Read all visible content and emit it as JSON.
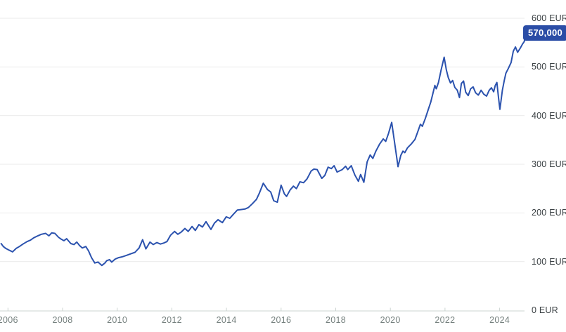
{
  "chart_data": {
    "type": "line",
    "title": "",
    "unit": "EUR",
    "current_value_label": "570,000",
    "line_color": "#2b52ae",
    "badge_color": "#2b4da6",
    "grid_color": "#ebebeb",
    "axis_color": "#ccd4d1",
    "grid": "horizontal-only",
    "legend": "none",
    "x_range": [
      2005.7,
      2025.2
    ],
    "ylim": [
      0,
      620
    ],
    "x_ticks": [
      "2006",
      "2008",
      "2010",
      "2012",
      "2014",
      "2016",
      "2018",
      "2020",
      "2022",
      "2024"
    ],
    "y_ticks": [
      {
        "value": 600,
        "label": "600 EUR"
      },
      {
        "value": 500,
        "label": "500 EUR"
      },
      {
        "value": 400,
        "label": "400 EUR"
      },
      {
        "value": 300,
        "label": "300 EUR"
      },
      {
        "value": 200,
        "label": "200 EUR"
      },
      {
        "value": 100,
        "label": "100 EUR"
      },
      {
        "value": 0,
        "label": "0 EUR"
      }
    ],
    "series": [
      {
        "points": [
          [
            2005.75,
            137
          ],
          [
            2005.83,
            131
          ],
          [
            2005.92,
            127
          ],
          [
            2006.02,
            124
          ],
          [
            2006.17,
            120
          ],
          [
            2006.3,
            127
          ],
          [
            2006.42,
            131
          ],
          [
            2006.55,
            136
          ],
          [
            2006.7,
            141
          ],
          [
            2006.82,
            144
          ],
          [
            2006.95,
            149
          ],
          [
            2007.1,
            153
          ],
          [
            2007.22,
            156
          ],
          [
            2007.38,
            158
          ],
          [
            2007.5,
            153
          ],
          [
            2007.6,
            159
          ],
          [
            2007.72,
            158
          ],
          [
            2007.85,
            150
          ],
          [
            2007.95,
            146
          ],
          [
            2008.05,
            143
          ],
          [
            2008.15,
            147
          ],
          [
            2008.3,
            137
          ],
          [
            2008.42,
            135
          ],
          [
            2008.52,
            140
          ],
          [
            2008.62,
            133
          ],
          [
            2008.72,
            128
          ],
          [
            2008.85,
            131
          ],
          [
            2008.95,
            122
          ],
          [
            2009.06,
            108
          ],
          [
            2009.18,
            97
          ],
          [
            2009.3,
            99
          ],
          [
            2009.44,
            92
          ],
          [
            2009.55,
            97
          ],
          [
            2009.62,
            102
          ],
          [
            2009.72,
            104
          ],
          [
            2009.8,
            99
          ],
          [
            2009.92,
            105
          ],
          [
            2010.05,
            108
          ],
          [
            2010.2,
            110
          ],
          [
            2010.35,
            113
          ],
          [
            2010.5,
            116
          ],
          [
            2010.65,
            119
          ],
          [
            2010.8,
            128
          ],
          [
            2010.93,
            145
          ],
          [
            2011.05,
            126
          ],
          [
            2011.2,
            140
          ],
          [
            2011.32,
            135
          ],
          [
            2011.45,
            139
          ],
          [
            2011.58,
            136
          ],
          [
            2011.7,
            138
          ],
          [
            2011.82,
            141
          ],
          [
            2011.95,
            154
          ],
          [
            2012.1,
            162
          ],
          [
            2012.22,
            156
          ],
          [
            2012.35,
            161
          ],
          [
            2012.48,
            168
          ],
          [
            2012.6,
            162
          ],
          [
            2012.74,
            172
          ],
          [
            2012.86,
            164
          ],
          [
            2012.99,
            176
          ],
          [
            2013.12,
            171
          ],
          [
            2013.25,
            182
          ],
          [
            2013.43,
            166
          ],
          [
            2013.56,
            179
          ],
          [
            2013.69,
            186
          ],
          [
            2013.85,
            180
          ],
          [
            2013.99,
            192
          ],
          [
            2014.12,
            189
          ],
          [
            2014.25,
            197
          ],
          [
            2014.4,
            206
          ],
          [
            2014.55,
            207
          ],
          [
            2014.68,
            208
          ],
          [
            2014.8,
            211
          ],
          [
            2014.95,
            219
          ],
          [
            2015.1,
            228
          ],
          [
            2015.2,
            240
          ],
          [
            2015.35,
            261
          ],
          [
            2015.5,
            248
          ],
          [
            2015.62,
            243
          ],
          [
            2015.73,
            225
          ],
          [
            2015.86,
            222
          ],
          [
            2016.0,
            257
          ],
          [
            2016.12,
            239
          ],
          [
            2016.2,
            234
          ],
          [
            2016.33,
            247
          ],
          [
            2016.45,
            255
          ],
          [
            2016.56,
            250
          ],
          [
            2016.69,
            264
          ],
          [
            2016.82,
            262
          ],
          [
            2016.95,
            270
          ],
          [
            2017.1,
            286
          ],
          [
            2017.2,
            290
          ],
          [
            2017.32,
            289
          ],
          [
            2017.49,
            271
          ],
          [
            2017.6,
            277
          ],
          [
            2017.72,
            294
          ],
          [
            2017.84,
            291
          ],
          [
            2017.94,
            297
          ],
          [
            2018.05,
            284
          ],
          [
            2018.24,
            289
          ],
          [
            2018.36,
            296
          ],
          [
            2018.44,
            289
          ],
          [
            2018.57,
            297
          ],
          [
            2018.7,
            278
          ],
          [
            2018.83,
            265
          ],
          [
            2018.91,
            279
          ],
          [
            2019.03,
            263
          ],
          [
            2019.15,
            305
          ],
          [
            2019.26,
            319
          ],
          [
            2019.36,
            312
          ],
          [
            2019.47,
            327
          ],
          [
            2019.6,
            341
          ],
          [
            2019.74,
            352
          ],
          [
            2019.83,
            347
          ],
          [
            2019.93,
            363
          ],
          [
            2020.05,
            386
          ],
          [
            2020.28,
            295
          ],
          [
            2020.38,
            318
          ],
          [
            2020.46,
            327
          ],
          [
            2020.53,
            324
          ],
          [
            2020.63,
            334
          ],
          [
            2020.77,
            342
          ],
          [
            2020.9,
            351
          ],
          [
            2021.0,
            366
          ],
          [
            2021.1,
            382
          ],
          [
            2021.17,
            378
          ],
          [
            2021.28,
            394
          ],
          [
            2021.38,
            411
          ],
          [
            2021.48,
            428
          ],
          [
            2021.56,
            446
          ],
          [
            2021.63,
            462
          ],
          [
            2021.68,
            455
          ],
          [
            2021.76,
            468
          ],
          [
            2021.85,
            492
          ],
          [
            2021.97,
            520
          ],
          [
            2022.05,
            494
          ],
          [
            2022.12,
            478
          ],
          [
            2022.2,
            467
          ],
          [
            2022.28,
            472
          ],
          [
            2022.36,
            458
          ],
          [
            2022.45,
            452
          ],
          [
            2022.53,
            437
          ],
          [
            2022.6,
            466
          ],
          [
            2022.68,
            471
          ],
          [
            2022.76,
            448
          ],
          [
            2022.85,
            441
          ],
          [
            2022.94,
            455
          ],
          [
            2023.03,
            459
          ],
          [
            2023.12,
            447
          ],
          [
            2023.22,
            442
          ],
          [
            2023.32,
            452
          ],
          [
            2023.42,
            444
          ],
          [
            2023.52,
            440
          ],
          [
            2023.62,
            452
          ],
          [
            2023.7,
            457
          ],
          [
            2023.78,
            449
          ],
          [
            2023.84,
            462
          ],
          [
            2023.9,
            468
          ],
          [
            2023.96,
            437
          ],
          [
            2024.01,
            413
          ],
          [
            2024.1,
            452
          ],
          [
            2024.17,
            472
          ],
          [
            2024.23,
            487
          ],
          [
            2024.32,
            497
          ],
          [
            2024.42,
            509
          ],
          [
            2024.5,
            532
          ],
          [
            2024.58,
            541
          ],
          [
            2024.66,
            530
          ],
          [
            2024.75,
            538
          ],
          [
            2024.84,
            547
          ],
          [
            2024.9,
            552
          ],
          [
            2024.96,
            570
          ]
        ]
      }
    ]
  }
}
